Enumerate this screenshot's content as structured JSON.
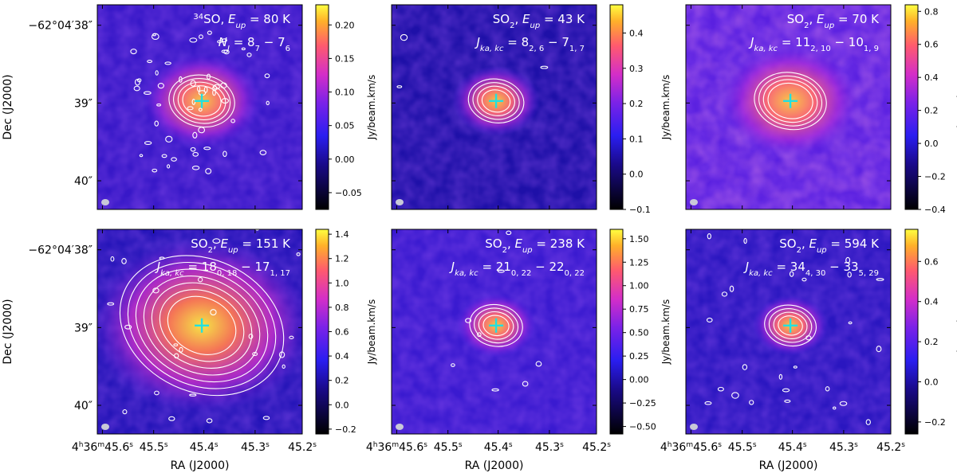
{
  "figure": {
    "dec_axis_label": "Dec (J2000)",
    "ra_axis_label": "RA (J2000)",
    "colorbar_label": "Jy/beam.km/s",
    "y_ticks": [
      "−62°04′38″",
      "39″",
      "40″"
    ],
    "x_ticks": [
      {
        "h": "4",
        "m": "36",
        "s": "45.6",
        "unit": "s",
        "first": true
      },
      {
        "s": "45.5",
        "unit": "s"
      },
      {
        "s": "45.4",
        "unit": "s"
      },
      {
        "s": "45.3",
        "unit": "s"
      },
      {
        "s": "45.2",
        "unit": "s"
      }
    ]
  },
  "panels": [
    {
      "id": "p1",
      "species_iso": "34",
      "species": "SO",
      "eup": "80 K",
      "transition": "J = 8₇ − 7₆",
      "transition_main": "N",
      "transition_sub_label": "J",
      "transition_text": "J = 8",
      "q1": "7",
      "mid": " − 7",
      "q2": "6",
      "cbar_ticks": [
        "0.20",
        "0.15",
        "0.10",
        "0.05",
        "0.00",
        "−0.05"
      ],
      "cbar_values": [
        0.2,
        0.15,
        0.1,
        0.05,
        0.0,
        -0.05
      ],
      "cbar_range": [
        -0.075,
        0.23
      ]
    },
    {
      "id": "p2",
      "species": "SO",
      "species_sub": "2",
      "eup": "43 K",
      "jlabel": "J",
      "jsub": "ka, kc",
      "lhs": "8",
      "lhs_sub": "2, 6",
      "rhs": "7",
      "rhs_sub": "1, 7",
      "cbar_ticks": [
        "0.4",
        "0.3",
        "0.2",
        "0.1",
        "0.0",
        "−0.1"
      ],
      "cbar_values": [
        0.4,
        0.3,
        0.2,
        0.1,
        0.0,
        -0.1
      ],
      "cbar_range": [
        -0.1,
        0.48
      ]
    },
    {
      "id": "p3",
      "species": "SO",
      "species_sub": "2",
      "eup": "70 K",
      "jlabel": "J",
      "jsub": "ka, kc",
      "lhs": "11",
      "lhs_sub": "2, 10",
      "rhs": "10",
      "rhs_sub": "1, 9",
      "cbar_ticks": [
        "0.8",
        "0.6",
        "0.4",
        "0.2",
        "0.0",
        "−0.2",
        "−0.4"
      ],
      "cbar_values": [
        0.8,
        0.6,
        0.4,
        0.2,
        0.0,
        -0.2,
        -0.4
      ],
      "cbar_range": [
        -0.4,
        0.84
      ]
    },
    {
      "id": "p4",
      "species": "SO",
      "species_sub": "2",
      "eup": "151 K",
      "jlabel": "J",
      "jsub": "ka, kc",
      "lhs": "18",
      "lhs_sub": "0, 18",
      "rhs": "17",
      "rhs_sub": "1, 17",
      "cbar_ticks": [
        "1.4",
        "1.2",
        "1.0",
        "0.8",
        "0.6",
        "0.4",
        "0.2",
        "0.0",
        "−0.2"
      ],
      "cbar_values": [
        1.4,
        1.2,
        1.0,
        0.8,
        0.6,
        0.4,
        0.2,
        0.0,
        -0.2
      ],
      "cbar_range": [
        -0.24,
        1.44
      ]
    },
    {
      "id": "p5",
      "species": "SO",
      "species_sub": "2",
      "eup": "238 K",
      "jlabel": "J",
      "jsub": "ka, kc",
      "lhs": "21",
      "lhs_sub": "0, 22",
      "rhs": "22",
      "rhs_sub": "0, 22",
      "cbar_ticks": [
        "1.50",
        "1.25",
        "1.00",
        "0.75",
        "0.50",
        "0.25",
        "0.00",
        "−0.25",
        "−0.50"
      ],
      "cbar_values": [
        1.5,
        1.25,
        1.0,
        0.75,
        0.5,
        0.25,
        0.0,
        -0.25,
        -0.5
      ],
      "cbar_range": [
        -0.58,
        1.6
      ]
    },
    {
      "id": "p6",
      "species": "SO",
      "species_sub": "2",
      "eup": "594 K",
      "jlabel": "J",
      "jsub": "ka, kc",
      "lhs": "34",
      "lhs_sub": "4, 30",
      "rhs": "33",
      "rhs_sub": "5, 29",
      "cbar_ticks": [
        "0.6",
        "0.4",
        "0.2",
        "0.0",
        "−0.2"
      ],
      "cbar_values": [
        0.6,
        0.4,
        0.2,
        0.0,
        -0.2
      ],
      "cbar_range": [
        -0.26,
        0.76
      ]
    }
  ]
}
